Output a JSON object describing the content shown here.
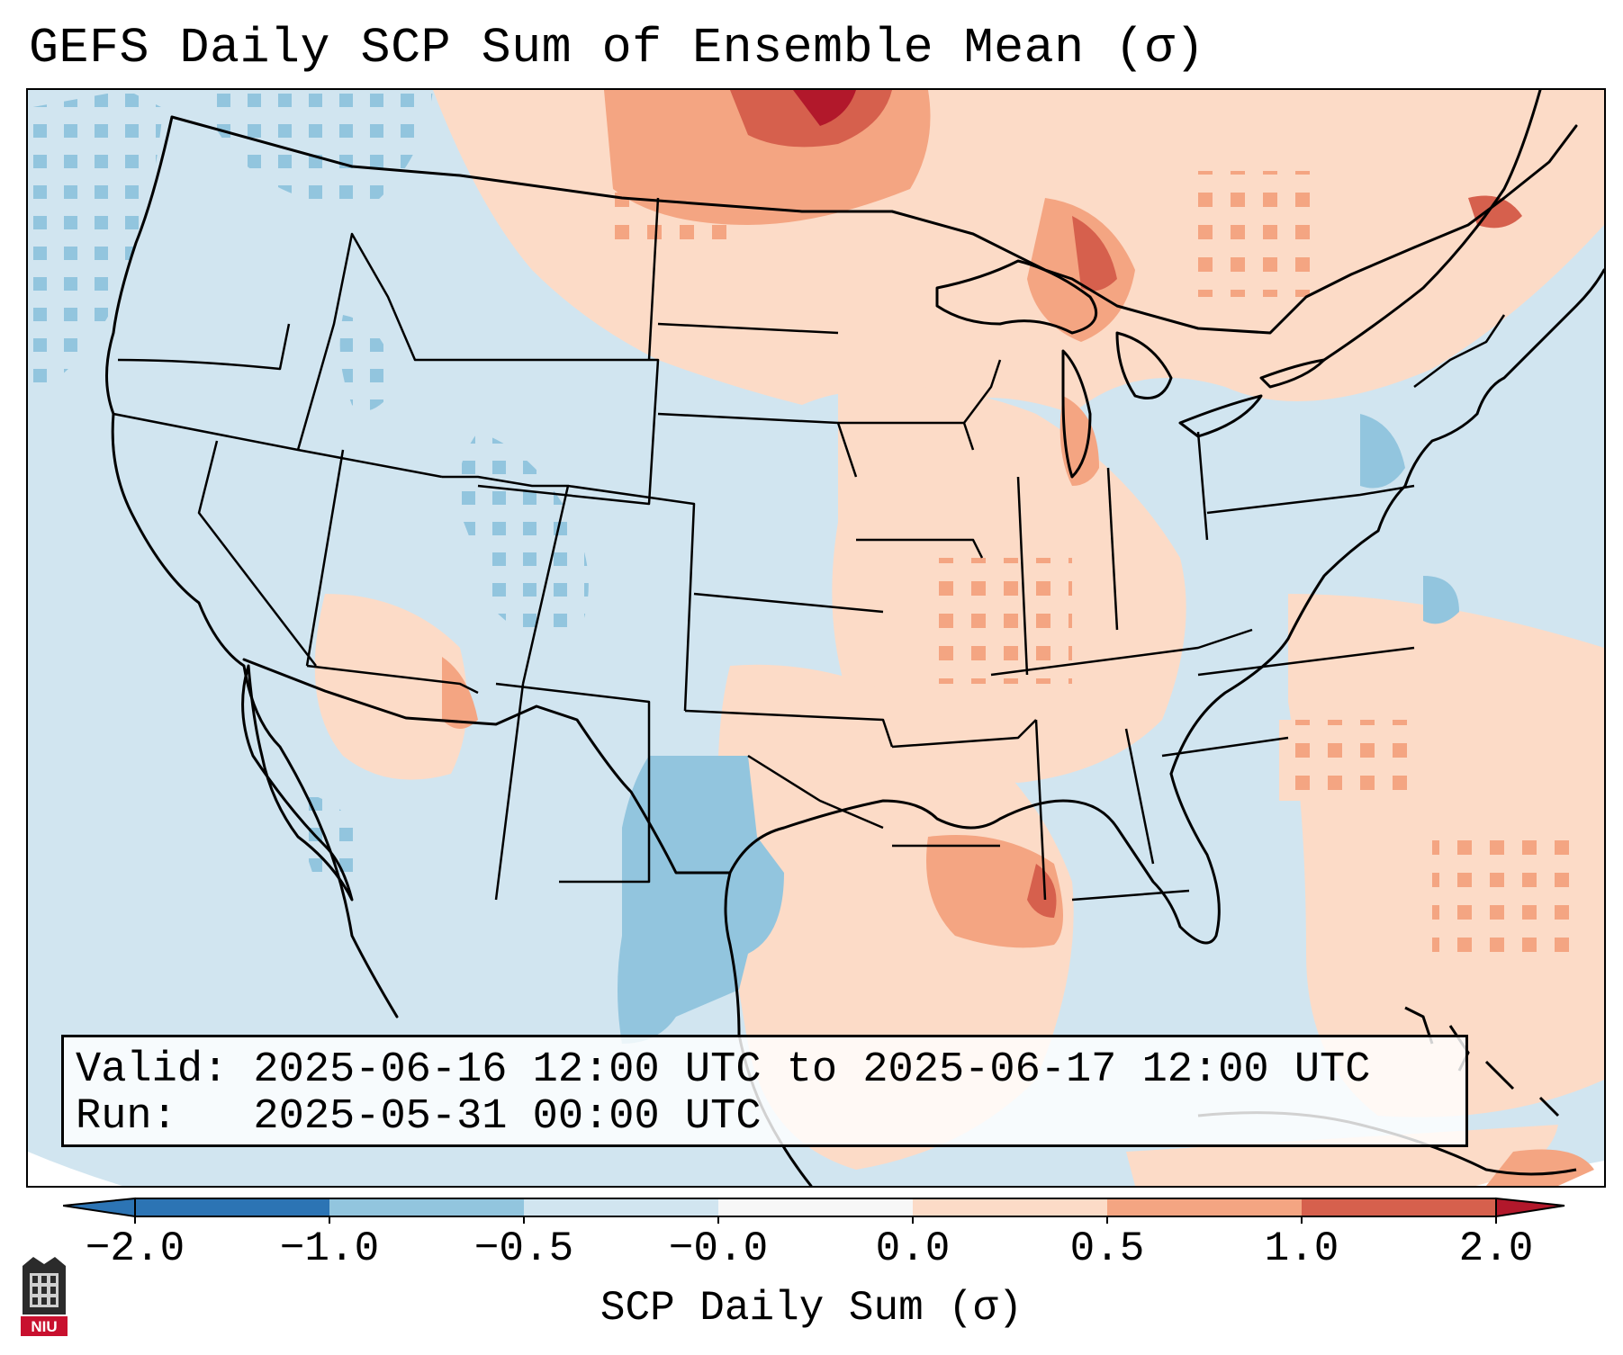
{
  "title": "GEFS Daily SCP Sum of Ensemble Mean (σ)",
  "info": {
    "valid": "Valid: 2025-06-16 12:00 UTC to 2025-06-17 12:00 UTC",
    "run": "Run:   2025-05-31 00:00 UTC"
  },
  "colorbar": {
    "label": "SCP Daily Sum (σ)",
    "ticks": [
      "−2.0",
      "−1.0",
      "−0.5",
      "−0.0",
      "0.0",
      "0.5",
      "1.0",
      "2.0"
    ],
    "bin_colors": [
      "#2c74b4",
      "#92c5de",
      "#d1e5f0",
      "#f7f7f7",
      "#fcdbc7",
      "#f4a582",
      "#d6604d",
      "#b2182b"
    ],
    "extend": "both"
  },
  "map": {
    "region": "CONUS",
    "projection": "Lambert Conformal",
    "field": "SCP daily sum anomaly",
    "high_anomaly_areas": [
      "Upper Midwest",
      "Lake Superior / Ontario",
      "Southern Plains",
      "Louisiana / Gulf Coast",
      "Atlantic"
    ],
    "low_anomaly_areas": [
      "Texas",
      "Pacific Northwest",
      "Colorado / Wyoming"
    ]
  },
  "logo": {
    "text": "NIU"
  },
  "colors": {
    "outside": "#ffffff",
    "ocean": "#d1e5f0",
    "blue": "#92c5de",
    "pink": "#fcdbc7",
    "orange": "#f4a582",
    "red": "#d6604d",
    "darkred": "#b2182b",
    "borders": "#000000"
  }
}
